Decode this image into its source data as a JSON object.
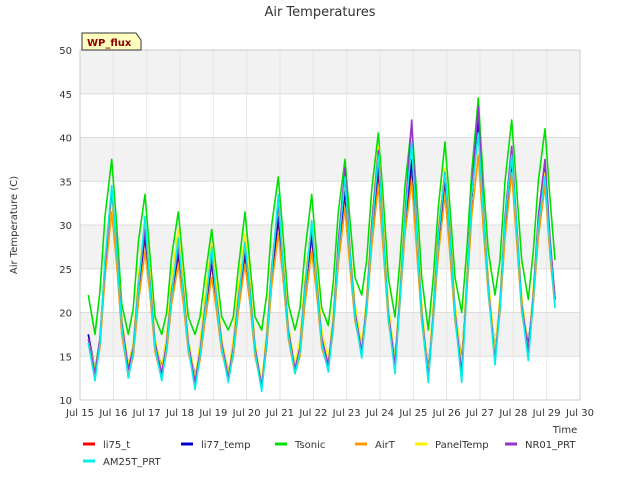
{
  "chart_data": {
    "type": "line",
    "title": "Air Temperatures",
    "xlabel": "Time",
    "ylabel": "Air Temperature (C)",
    "badge": "WP_flux",
    "xlim": [
      15,
      30
    ],
    "ylim": [
      10,
      50
    ],
    "x_ticks": [
      15,
      16,
      17,
      18,
      19,
      20,
      21,
      22,
      23,
      24,
      25,
      26,
      27,
      28,
      29,
      30
    ],
    "x_tick_labels": [
      "Jul 15",
      "Jul 16",
      "Jul 17",
      "Jul 18",
      "Jul 19",
      "Jul 20",
      "Jul 21",
      "Jul 22",
      "Jul 23",
      "Jul 24",
      "Jul 25",
      "Jul 26",
      "Jul 27",
      "Jul 28",
      "Jul 29",
      "Jul 30"
    ],
    "y_ticks": [
      10,
      15,
      20,
      25,
      30,
      35,
      40,
      45,
      50
    ],
    "grid": true,
    "legend_position": "bottom",
    "x": [
      15.25,
      15.45,
      15.6,
      15.75,
      15.95,
      16.1,
      16.25,
      16.45,
      16.6,
      16.75,
      16.95,
      17.1,
      17.25,
      17.45,
      17.6,
      17.75,
      17.95,
      18.1,
      18.25,
      18.45,
      18.6,
      18.75,
      18.95,
      19.1,
      19.25,
      19.45,
      19.6,
      19.75,
      19.95,
      20.1,
      20.25,
      20.45,
      20.6,
      20.75,
      20.95,
      21.1,
      21.25,
      21.45,
      21.6,
      21.75,
      21.95,
      22.1,
      22.25,
      22.45,
      22.6,
      22.75,
      22.95,
      23.1,
      23.25,
      23.45,
      23.6,
      23.75,
      23.95,
      24.1,
      24.25,
      24.45,
      24.6,
      24.75,
      24.95,
      25.1,
      25.25,
      25.45,
      25.6,
      25.75,
      25.95,
      26.1,
      26.25,
      26.45,
      26.6,
      26.75,
      26.95,
      27.1,
      27.25,
      27.45,
      27.6,
      27.75,
      27.95,
      28.1,
      28.25,
      28.45,
      28.6,
      28.75,
      28.95,
      29.1,
      29.25
    ],
    "series": [
      {
        "name": "li75_t",
        "color": "#ff0000",
        "values": [
          17.5,
          13.0,
          17.0,
          25.0,
          33.5,
          27.0,
          19.0,
          13.5,
          16.0,
          22.5,
          28.5,
          23.0,
          16.5,
          13.5,
          16.5,
          22.0,
          26.5,
          22.0,
          16.5,
          12.5,
          15.5,
          20.0,
          25.5,
          21.0,
          16.5,
          13.0,
          16.0,
          21.0,
          26.5,
          22.0,
          16.0,
          11.5,
          17.0,
          24.0,
          30.5,
          24.5,
          18.0,
          13.5,
          16.0,
          22.5,
          28.5,
          23.0,
          17.0,
          14.0,
          19.0,
          27.0,
          33.5,
          26.0,
          20.0,
          16.0,
          21.0,
          29.0,
          36.0,
          28.0,
          20.0,
          14.5,
          22.0,
          30.0,
          36.5,
          28.5,
          20.0,
          13.0,
          20.0,
          28.0,
          35.0,
          28.0,
          20.0,
          14.0,
          23.0,
          33.0,
          41.0,
          31.0,
          23.0,
          15.5,
          21.0,
          30.0,
          37.0,
          29.0,
          21.0,
          16.0,
          22.0,
          30.0,
          36.0,
          28.0,
          21.5
        ]
      },
      {
        "name": "li77_temp",
        "color": "#0000cc",
        "values": [
          17.5,
          13.5,
          17.0,
          25.5,
          33.5,
          27.0,
          19.0,
          14.0,
          16.0,
          22.5,
          29.0,
          23.0,
          16.5,
          13.8,
          16.5,
          22.0,
          27.0,
          22.0,
          16.5,
          12.8,
          15.5,
          20.0,
          26.0,
          21.0,
          16.8,
          13.2,
          16.0,
          21.0,
          27.0,
          22.0,
          16.2,
          11.8,
          17.0,
          24.5,
          31.0,
          24.5,
          18.0,
          13.8,
          16.0,
          22.5,
          29.0,
          23.0,
          17.0,
          14.2,
          19.0,
          27.0,
          34.0,
          26.0,
          20.0,
          16.2,
          21.0,
          29.0,
          37.0,
          28.0,
          20.0,
          14.8,
          22.0,
          30.5,
          37.5,
          28.5,
          20.0,
          13.5,
          20.0,
          28.0,
          35.5,
          28.0,
          20.0,
          14.5,
          23.0,
          33.0,
          42.0,
          31.0,
          23.0,
          15.8,
          21.0,
          30.0,
          37.5,
          29.0,
          21.0,
          16.2,
          22.0,
          30.0,
          36.5,
          28.0,
          21.5
        ]
      },
      {
        "name": "Tsonic",
        "color": "#00e000",
        "values": [
          22.0,
          17.5,
          22.5,
          31.0,
          37.5,
          30.0,
          21.0,
          17.5,
          20.5,
          28.0,
          33.5,
          26.5,
          19.5,
          17.5,
          20.0,
          26.5,
          31.5,
          25.5,
          19.5,
          17.5,
          19.5,
          24.0,
          29.5,
          24.5,
          19.5,
          18.0,
          19.5,
          25.0,
          31.5,
          25.5,
          19.5,
          18.0,
          22.0,
          30.0,
          35.5,
          28.5,
          21.0,
          18.0,
          20.5,
          27.0,
          33.5,
          26.5,
          20.5,
          18.5,
          23.5,
          31.5,
          37.5,
          30.5,
          24.0,
          22.0,
          26.0,
          34.0,
          40.5,
          33.0,
          24.0,
          19.5,
          26.0,
          34.5,
          41.5,
          33.5,
          24.0,
          18.0,
          24.0,
          32.0,
          39.5,
          32.0,
          24.0,
          20.0,
          27.0,
          36.0,
          44.5,
          35.0,
          27.0,
          22.0,
          26.0,
          35.0,
          42.0,
          34.0,
          26.0,
          21.5,
          27.0,
          35.0,
          41.0,
          33.0,
          26.0
        ]
      },
      {
        "name": "AirT",
        "color": "#ff9900",
        "values": [
          16.5,
          13.0,
          16.0,
          24.0,
          31.5,
          25.5,
          17.5,
          12.8,
          15.0,
          21.0,
          27.0,
          22.0,
          15.5,
          12.5,
          15.5,
          21.0,
          25.5,
          21.0,
          15.5,
          12.0,
          14.5,
          19.0,
          24.0,
          20.0,
          15.5,
          12.5,
          15.0,
          20.0,
          25.5,
          21.0,
          15.0,
          11.5,
          16.0,
          23.0,
          29.0,
          23.5,
          17.0,
          13.0,
          15.0,
          21.0,
          27.0,
          22.0,
          16.0,
          13.5,
          18.0,
          25.5,
          32.0,
          25.0,
          19.0,
          15.5,
          20.0,
          27.5,
          34.5,
          27.0,
          19.0,
          14.0,
          21.0,
          29.0,
          35.0,
          27.0,
          19.0,
          12.5,
          19.0,
          26.5,
          33.5,
          26.5,
          19.0,
          13.5,
          22.0,
          31.0,
          38.0,
          29.5,
          22.0,
          15.0,
          20.0,
          28.5,
          36.0,
          28.0,
          20.0,
          15.5,
          21.0,
          28.5,
          34.5,
          26.5,
          20.5
        ]
      },
      {
        "name": "PanelTemp",
        "color": "#ffee00",
        "values": [
          17.0,
          13.5,
          17.0,
          26.0,
          33.0,
          27.5,
          19.5,
          14.0,
          16.5,
          24.0,
          30.5,
          24.5,
          17.0,
          13.5,
          17.5,
          24.0,
          29.5,
          23.5,
          17.0,
          12.5,
          16.5,
          22.0,
          28.0,
          22.5,
          17.0,
          13.0,
          17.0,
          23.0,
          29.0,
          23.5,
          16.5,
          12.0,
          18.0,
          25.5,
          32.0,
          26.0,
          18.5,
          14.0,
          17.0,
          24.0,
          30.0,
          24.5,
          18.0,
          14.5,
          20.0,
          28.0,
          35.0,
          27.5,
          21.0,
          16.0,
          22.0,
          30.5,
          39.0,
          30.0,
          21.0,
          14.5,
          23.0,
          31.5,
          39.0,
          30.0,
          21.0,
          13.0,
          21.0,
          29.5,
          36.5,
          29.5,
          21.0,
          14.0,
          24.0,
          33.5,
          40.5,
          32.0,
          24.0,
          15.5,
          22.0,
          31.0,
          38.0,
          30.0,
          22.0,
          15.5,
          23.0,
          30.5,
          36.0,
          28.0,
          21.0
        ]
      },
      {
        "name": "NR01_PRT",
        "color": "#9933cc",
        "values": [
          17.0,
          13.0,
          17.0,
          25.5,
          34.0,
          27.5,
          19.0,
          13.5,
          16.0,
          23.0,
          29.5,
          23.5,
          16.5,
          13.0,
          16.5,
          22.5,
          27.5,
          22.5,
          16.5,
          12.0,
          15.5,
          20.5,
          26.5,
          21.5,
          16.5,
          12.5,
          16.0,
          21.5,
          27.5,
          22.5,
          16.0,
          11.5,
          17.0,
          25.0,
          32.5,
          25.0,
          18.0,
          13.5,
          16.0,
          23.0,
          30.0,
          23.5,
          17.0,
          14.0,
          19.0,
          28.0,
          36.5,
          27.0,
          20.0,
          15.5,
          21.0,
          30.0,
          38.5,
          29.0,
          20.0,
          14.0,
          22.0,
          31.0,
          42.0,
          29.5,
          20.0,
          12.5,
          20.0,
          29.0,
          36.0,
          29.0,
          20.0,
          13.0,
          23.0,
          34.0,
          43.5,
          32.0,
          23.0,
          14.5,
          21.0,
          31.0,
          39.0,
          30.0,
          21.0,
          15.5,
          22.0,
          31.0,
          37.5,
          28.5,
          21.5
        ]
      },
      {
        "name": "AM25T_PRT",
        "color": "#00eeee",
        "values": [
          16.5,
          12.2,
          16.5,
          26.0,
          34.5,
          27.0,
          18.5,
          12.5,
          15.5,
          22.5,
          31.0,
          23.0,
          16.0,
          12.2,
          16.0,
          22.0,
          28.5,
          22.0,
          16.0,
          11.2,
          15.0,
          20.0,
          27.5,
          21.0,
          16.0,
          12.0,
          15.5,
          21.0,
          28.0,
          22.0,
          15.5,
          11.0,
          16.5,
          24.5,
          33.5,
          24.5,
          17.5,
          13.0,
          15.5,
          22.5,
          30.5,
          23.0,
          16.5,
          13.2,
          18.5,
          27.0,
          35.5,
          26.5,
          19.5,
          14.8,
          20.5,
          29.0,
          38.0,
          28.5,
          19.5,
          13.0,
          21.5,
          30.5,
          39.5,
          29.0,
          19.5,
          12.0,
          19.5,
          28.5,
          36.0,
          28.5,
          19.5,
          12.0,
          22.5,
          33.5,
          40.5,
          31.5,
          22.5,
          14.0,
          20.5,
          30.5,
          38.0,
          29.5,
          20.5,
          14.5,
          21.5,
          30.0,
          35.5,
          27.5,
          20.5
        ]
      }
    ]
  }
}
